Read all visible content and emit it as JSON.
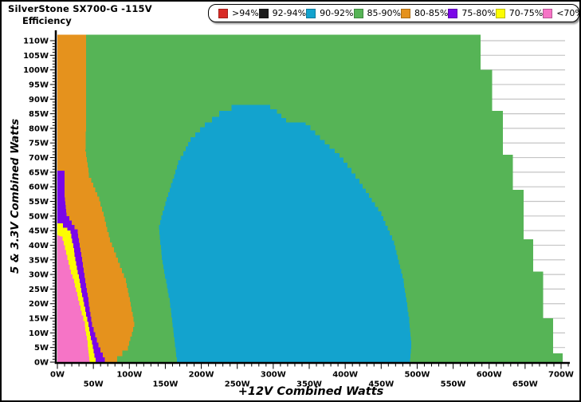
{
  "chart_data": {
    "type": "heatmap",
    "title": "SilverStone SX700-G -115V",
    "subtitle": "Efficiency",
    "xlabel": "+12V Combined Watts",
    "ylabel": "5 & 3.3V Combined Watts",
    "xlim": [
      0,
      700
    ],
    "ylim": [
      0,
      110
    ],
    "x_major_step_w": 50,
    "x_minor_step_w": 10,
    "y_major_step_w": 5,
    "y_minor_step_w": 1,
    "grid": "horizontal gridlines every 5W, visible only outside tested-load area",
    "grid_color": "#c4c4c4",
    "axis_color": "#000000",
    "background_color": "#ffffff",
    "x_tick_labels": [
      "0W",
      "50W",
      "100W",
      "150W",
      "200W",
      "250W",
      "300W",
      "350W",
      "400W",
      "450W",
      "500W",
      "550W",
      "600W",
      "650W",
      "700W"
    ],
    "y_tick_labels": [
      "0W",
      "5W",
      "10W",
      "15W",
      "20W",
      "25W",
      "30W",
      "35W",
      "40W",
      "45W",
      "50W",
      "55W",
      "60W",
      "65W",
      "70W",
      "75W",
      "80W",
      "85W",
      "90W",
      "95W",
      "100W",
      "105W",
      "110W"
    ],
    "legend_position": "top-right",
    "legend": [
      {
        "label": ">94%",
        "color": "#D92B26"
      },
      {
        "label": "92-94%",
        "color": "#1C1C1C"
      },
      {
        "label": "90-92%",
        "color": "#13A3CE"
      },
      {
        "label": "85-90%",
        "color": "#56B456"
      },
      {
        "label": "80-85%",
        "color": "#E5921D"
      },
      {
        "label": "75-80%",
        "color": "#7A06E8"
      },
      {
        "label": "70-75%",
        "color": "#FCFC02"
      },
      {
        "label": "<70%",
        "color": "#F674C6"
      }
    ],
    "regions": [
      {
        "band": "85-90%",
        "color": "#56B456",
        "points_w": [
          [
            0,
            112
          ],
          [
            588,
            112
          ],
          [
            588,
            100
          ],
          [
            604,
            100
          ],
          [
            604,
            86
          ],
          [
            619,
            86
          ],
          [
            619,
            71
          ],
          [
            633,
            71
          ],
          [
            633,
            59
          ],
          [
            648,
            59
          ],
          [
            648,
            42
          ],
          [
            661,
            42
          ],
          [
            661,
            31
          ],
          [
            675,
            31
          ],
          [
            675,
            15
          ],
          [
            689,
            15
          ],
          [
            689,
            3
          ],
          [
            702,
            3
          ],
          [
            702,
            0
          ],
          [
            0,
            0
          ]
        ]
      },
      {
        "band": "80-85%",
        "color": "#E5921D",
        "points_w": [
          [
            0,
            112
          ],
          [
            40,
            112
          ],
          [
            40,
            83
          ],
          [
            39,
            72
          ],
          [
            44,
            63
          ],
          [
            58,
            55
          ],
          [
            66,
            48
          ],
          [
            73,
            41
          ],
          [
            84,
            34
          ],
          [
            95,
            27
          ],
          [
            102,
            19
          ],
          [
            107,
            12
          ],
          [
            98,
            4
          ],
          [
            83,
            0
          ],
          [
            0,
            0
          ]
        ]
      },
      {
        "band": "75-80%",
        "color": "#7A06E8",
        "points_w": [
          [
            0,
            65.5
          ],
          [
            10,
            65.5
          ],
          [
            10,
            57
          ],
          [
            13,
            50
          ],
          [
            20,
            47
          ],
          [
            28,
            44
          ],
          [
            33,
            36
          ],
          [
            39,
            27
          ],
          [
            44,
            19
          ],
          [
            48,
            12
          ],
          [
            57,
            5
          ],
          [
            66,
            0
          ],
          [
            0,
            0
          ]
        ]
      },
      {
        "band": "70-75%",
        "color": "#FCFC02",
        "points_w": [
          [
            0,
            47.5
          ],
          [
            8,
            46
          ],
          [
            14,
            45
          ],
          [
            18,
            44
          ],
          [
            22,
            39
          ],
          [
            26,
            33
          ],
          [
            31,
            27
          ],
          [
            37,
            19
          ],
          [
            43,
            12
          ],
          [
            48,
            6
          ],
          [
            53,
            0
          ],
          [
            0,
            0
          ]
        ]
      },
      {
        "band": "<70%",
        "color": "#F674C6",
        "points_w": [
          [
            0,
            43.5
          ],
          [
            5,
            43
          ],
          [
            9,
            40
          ],
          [
            14,
            35
          ],
          [
            19,
            30
          ],
          [
            23,
            27
          ],
          [
            29,
            21
          ],
          [
            34,
            16
          ],
          [
            38,
            12
          ],
          [
            42,
            6
          ],
          [
            45,
            0
          ],
          [
            0,
            0
          ]
        ]
      },
      {
        "band": "90-92%",
        "color": "#13A3CE",
        "points_w": [
          [
            242,
            88
          ],
          [
            287,
            88
          ],
          [
            305,
            85
          ],
          [
            318,
            82
          ],
          [
            345,
            81
          ],
          [
            365,
            76
          ],
          [
            392,
            70
          ],
          [
            420,
            61
          ],
          [
            450,
            50
          ],
          [
            468,
            40
          ],
          [
            481,
            27
          ],
          [
            489,
            14
          ],
          [
            492,
            6
          ],
          [
            490,
            0
          ],
          [
            167,
            0
          ],
          [
            156,
            22
          ],
          [
            146,
            35
          ],
          [
            141,
            47
          ],
          [
            150,
            55
          ],
          [
            168,
            69
          ],
          [
            185,
            77
          ],
          [
            205,
            82
          ],
          [
            225,
            86
          ]
        ]
      }
    ]
  }
}
